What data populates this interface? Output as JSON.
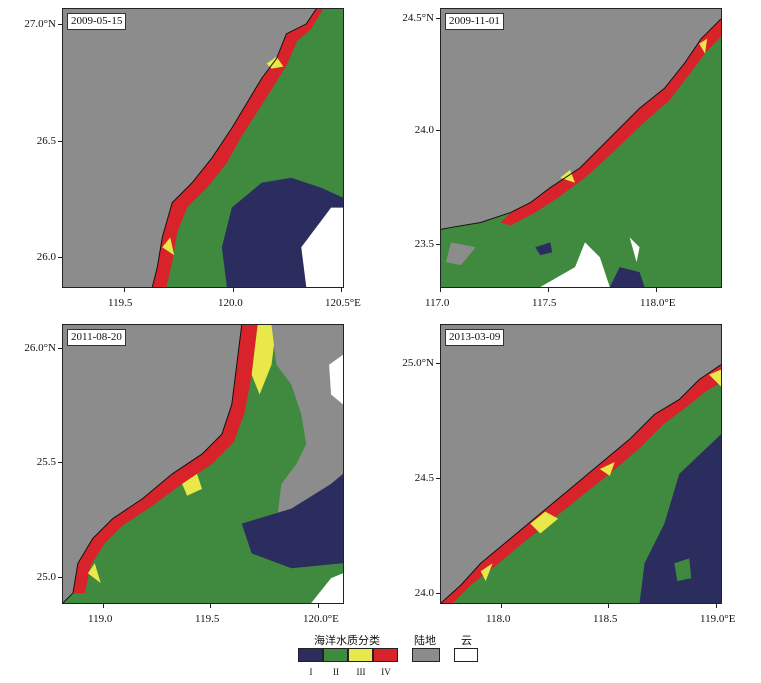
{
  "panels": [
    {
      "id": "p1",
      "date": "2009-05-15",
      "y_ticks": [
        "27.0°N",
        "26.5",
        "26.0"
      ],
      "x_ticks": [
        "119.5",
        "120.0",
        "120.5°E"
      ]
    },
    {
      "id": "p2",
      "date": "2009-11-01",
      "y_ticks": [
        "24.5°N",
        "24.0",
        "23.5"
      ],
      "x_ticks": [
        "117.0",
        "117.5",
        "118.0°E"
      ]
    },
    {
      "id": "p3",
      "date": "2011-08-20",
      "y_ticks": [
        "26.0°N",
        "25.5",
        "25.0"
      ],
      "x_ticks": [
        "119.0",
        "119.5",
        "120.0°E"
      ]
    },
    {
      "id": "p4",
      "date": "2013-03-09",
      "y_ticks": [
        "25.0°N",
        "24.5",
        "24.0"
      ],
      "x_ticks": [
        "118.0",
        "118.5",
        "119.0°E"
      ]
    }
  ],
  "legend": {
    "water_title": "海洋水质分类",
    "land_title": "陆地",
    "cloud_title": "云",
    "classes": [
      {
        "label": "I",
        "color": "#2b2d5e"
      },
      {
        "label": "II",
        "color": "#3f8a3f"
      },
      {
        "label": "III",
        "color": "#e8e84a"
      },
      {
        "label": "IV",
        "color": "#d8232a"
      }
    ],
    "land_color": "#8c8c8c",
    "cloud_color": "#ffffff"
  }
}
